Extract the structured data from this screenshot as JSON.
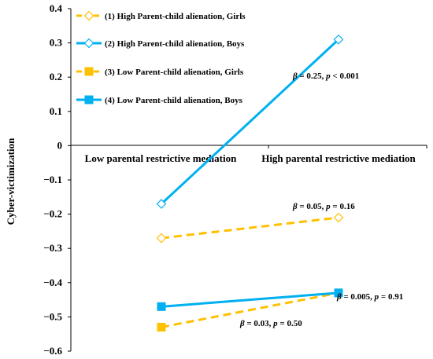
{
  "chart_data": {
    "type": "line",
    "ylabel": "Cyber-victimization",
    "xlabel": "",
    "categories": [
      "Low parental restrictive mediation",
      "High parental restrictive mediation"
    ],
    "ylim": [
      -0.6,
      0.4
    ],
    "yticks": [
      0.4,
      0.3,
      0.2,
      0.1,
      0,
      -0.1,
      -0.2,
      -0.3,
      -0.4,
      -0.5,
      -0.6
    ],
    "ytick_labels": [
      "0.4",
      "0.3",
      "0.2",
      "0.1",
      "0",
      "−0.1",
      "−0.2",
      "−0.3",
      "−0.4",
      "−0.5",
      "−0.6"
    ],
    "grid": false,
    "legend_position": "top-left",
    "series": [
      {
        "name": "(1) High Parent-child alienation, Girls",
        "values": [
          -0.27,
          -0.21
        ],
        "color": "#FFC000",
        "dash": true,
        "marker": "diamond-open"
      },
      {
        "name": "(2) High Parent-child alienation, Boys",
        "values": [
          -0.17,
          0.31
        ],
        "color": "#00B0F0",
        "dash": false,
        "marker": "diamond-open"
      },
      {
        "name": "(3) Low Parent-child alienation, Girls",
        "values": [
          -0.53,
          -0.43
        ],
        "color": "#FFC000",
        "dash": true,
        "marker": "square"
      },
      {
        "name": "(4) Low Parent-child alienation, Boys",
        "values": [
          -0.47,
          -0.43
        ],
        "color": "#00B0F0",
        "dash": false,
        "marker": "square"
      }
    ],
    "annotations": [
      {
        "beta": "β",
        "rest": " = 0.25, ",
        "p": "p",
        "tail": " < 0.001"
      },
      {
        "beta": "β",
        "rest": " = 0.05, ",
        "p": "p",
        "tail": " = 0.16"
      },
      {
        "beta": "β",
        "rest": " = 0.005, ",
        "p": "p",
        "tail": " = 0.91"
      },
      {
        "beta": "β",
        "rest": " = 0.03, ",
        "p": "p",
        "tail": " = 0.50"
      }
    ]
  }
}
